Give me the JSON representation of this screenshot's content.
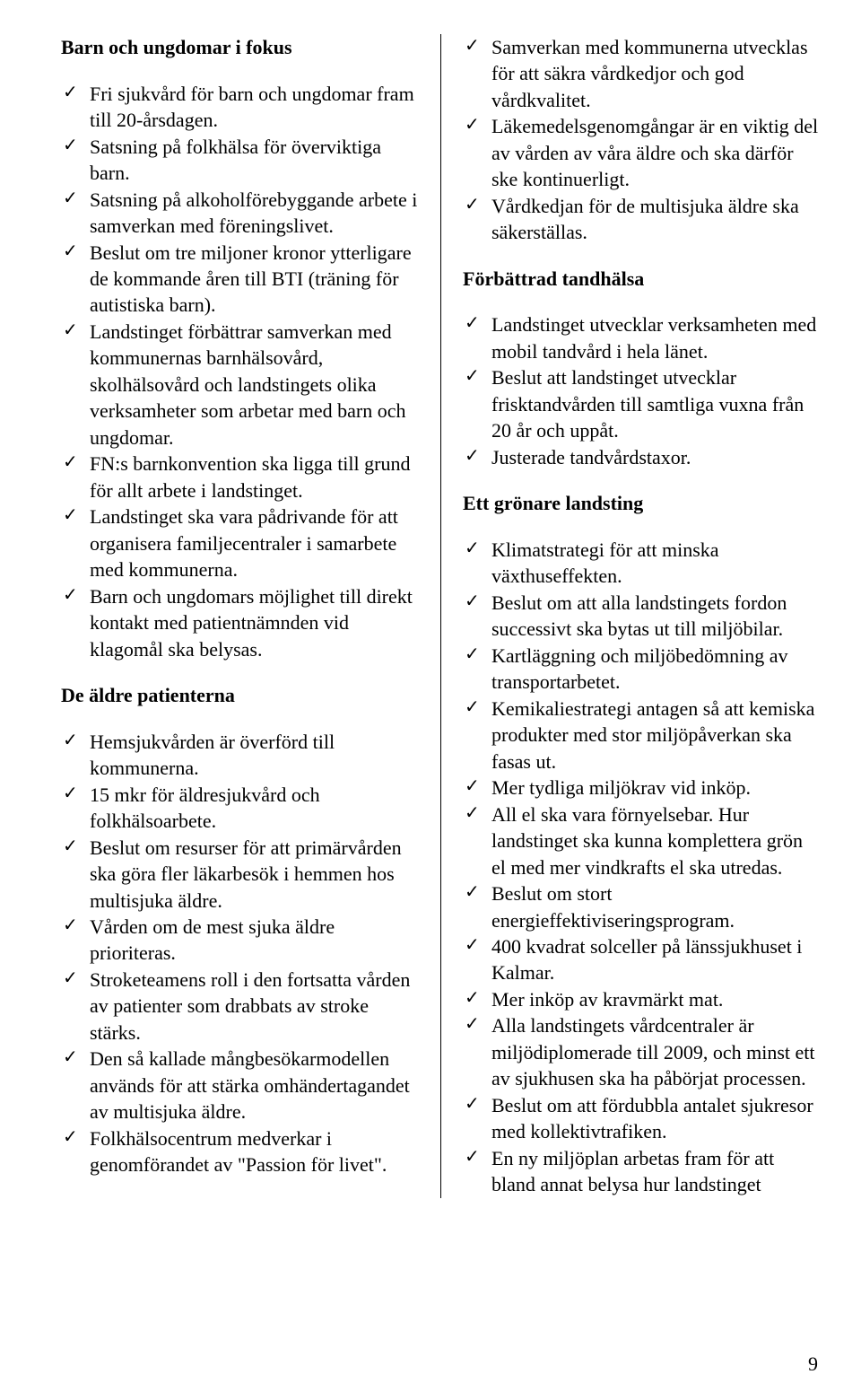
{
  "page": {
    "number": "9",
    "background": "#ffffff",
    "text_color": "#000000",
    "font_family": "Times New Roman",
    "body_fontsize": 22,
    "heading_fontsize": 22,
    "heading_weight": "bold",
    "divider_color": "#000000"
  },
  "left": {
    "sections": [
      {
        "heading": "Barn och ungdomar i fokus",
        "items": [
          "Fri sjukvård för barn och ungdomar fram till 20-årsdagen.",
          "Satsning på folkhälsa för överviktiga barn.",
          "Satsning på alkoholförebyggande arbete i samverkan med föreningslivet.",
          "Beslut om tre miljoner kronor ytterligare de kommande åren till BTI (träning för autistiska barn).",
          "Landstinget förbättrar samverkan med kommunernas barnhälsovård, skolhälsovård och landstingets olika verksamheter som arbetar med barn och ungdomar.",
          "FN:s barnkonvention ska ligga till grund för allt arbete i landstinget.",
          "Landstinget ska vara pådrivande för att organisera familjecentraler i samarbete med kommunerna.",
          "Barn och ungdomars möjlighet till direkt kontakt med patientnämnden vid klagomål ska belysas."
        ]
      },
      {
        "heading": "De äldre patienterna",
        "items": [
          "Hemsjukvården är överförd till kommunerna.",
          "15 mkr för äldresjukvård och folkhälsoarbete.",
          "Beslut om resurser för att primärvården ska göra fler läkarbesök i hemmen hos multisjuka äldre.",
          "Vården om de mest sjuka äldre prioriteras.",
          "Stroketeamens roll i den fortsatta vården av patienter som drabbats av stroke stärks.",
          "Den så kallade mångbesökarmodellen används för att stärka omhändertagandet av multisjuka äldre.",
          "Folkhälsocentrum medverkar i genomförandet av \"Passion för livet\"."
        ]
      }
    ]
  },
  "right": {
    "lead_items": [
      "Samverkan med kommunerna utvecklas för att säkra vårdkedjor och god vårdkvalitet.",
      "Läkemedelsgenomgångar är en viktig del av vården av våra äldre och ska därför ske kontinuerligt.",
      "Vårdkedjan för de multisjuka äldre ska säkerställas."
    ],
    "sections": [
      {
        "heading": "Förbättrad tandhälsa",
        "items": [
          "Landstinget utvecklar verksamheten med mobil tandvård i hela länet.",
          "Beslut att landstinget utvecklar frisktandvården till samtliga vuxna från 20 år och uppåt.",
          "Justerade tandvårdstaxor."
        ]
      },
      {
        "heading": "Ett grönare landsting",
        "items": [
          "Klimatstrategi för att minska växthuseffekten.",
          "Beslut om att alla landstingets fordon successivt ska bytas ut till miljöbilar.",
          "Kartläggning och miljöbedömning av transportarbetet.",
          "Kemikaliestrategi antagen så att kemiska produkter med stor miljöpåverkan ska fasas ut.",
          "Mer tydliga miljökrav vid inköp.",
          "All el ska vara förnyelsebar. Hur landstinget ska kunna komplettera grön el med mer vindkrafts el ska utredas.",
          "Beslut om stort energieffektiviseringsprogram.",
          "400 kvadrat solceller på länssjukhuset i Kalmar.",
          "Mer inköp av kravmärkt mat.",
          "Alla landstingets vårdcentraler är miljödiplomerade till 2009, och minst ett av sjukhusen ska ha påbörjat processen.",
          "Beslut om att fördubbla antalet sjukresor med kollektivtrafiken.",
          "En ny miljöplan arbetas fram för att bland annat belysa hur landstinget"
        ]
      }
    ]
  }
}
